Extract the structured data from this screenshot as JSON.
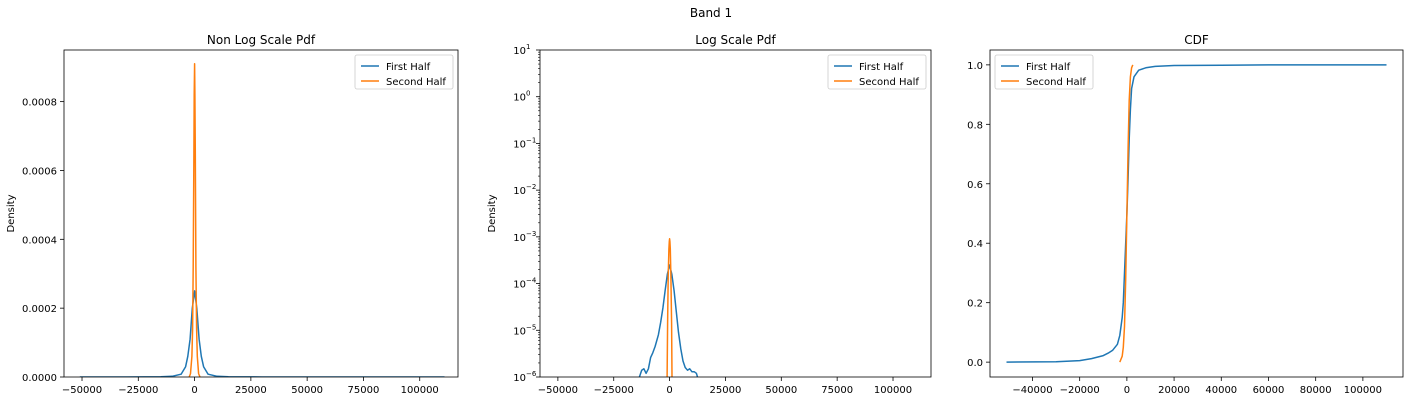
{
  "suptitle": "Band 1",
  "colors": {
    "first_half": "#1f77b4",
    "second_half": "#ff7f0e"
  },
  "chart_data": [
    {
      "type": "line",
      "title": "Non Log Scale Pdf",
      "xlabel": "",
      "ylabel": "Density",
      "xlim": [
        -58000,
        117000
      ],
      "ylim": [
        0,
        0.00095
      ],
      "yscale": "linear",
      "xticks": [
        -50000,
        -25000,
        0,
        25000,
        50000,
        75000,
        100000
      ],
      "xtick_labels": [
        "−50000",
        "−25000",
        "0",
        "25000",
        "50000",
        "75000",
        "100000"
      ],
      "yticks": [
        0,
        0.0002,
        0.0004,
        0.0006,
        0.0008
      ],
      "ytick_labels": [
        "0.0000",
        "0.0002",
        "0.0004",
        "0.0006",
        "0.0008"
      ],
      "legend": "top-right",
      "grid": false,
      "series": [
        {
          "name": "First Half",
          "x": [
            -51000,
            -30000,
            -15000,
            -10000,
            -6000,
            -4000,
            -3000,
            -2000,
            -1000,
            0,
            1000,
            2000,
            3000,
            4000,
            6000,
            10000,
            15000,
            30000,
            60000,
            111000
          ],
          "y": [
            0,
            0,
            1e-06,
            2e-06,
            8e-06,
            3e-05,
            6e-05,
            0.00011,
            0.0002,
            0.00025,
            0.0002,
            0.00011,
            6e-05,
            3e-05,
            8e-06,
            2e-06,
            1e-06,
            0,
            0,
            0
          ]
        },
        {
          "name": "Second Half",
          "x": [
            -2400,
            -1800,
            -1200,
            -900,
            -600,
            -300,
            -150,
            0,
            150,
            300,
            600,
            900,
            1200,
            1800,
            2400
          ],
          "y": [
            0,
            1e-05,
            6e-05,
            0.00014,
            0.00032,
            0.00065,
            0.00082,
            0.00091,
            0.00082,
            0.00065,
            0.00032,
            0.00014,
            6e-05,
            1e-05,
            0
          ]
        }
      ]
    },
    {
      "type": "line",
      "title": "Log Scale Pdf",
      "xlabel": "",
      "ylabel": "Density",
      "xlim": [
        -58000,
        117000
      ],
      "ylim": [
        1e-06,
        10
      ],
      "yscale": "log",
      "xticks": [
        -50000,
        -25000,
        0,
        25000,
        50000,
        75000,
        100000
      ],
      "xtick_labels": [
        "−50000",
        "−25000",
        "0",
        "25000",
        "50000",
        "75000",
        "100000"
      ],
      "yticks": [
        1e-06,
        1e-05,
        0.0001,
        0.001,
        0.01,
        0.1,
        1,
        10
      ],
      "ytick_exponents": [
        "−6",
        "−5",
        "−4",
        "−3",
        "−2",
        "−1",
        "0",
        "1"
      ],
      "legend": "top-right",
      "grid": false,
      "series": [
        {
          "name": "First Half",
          "x": [
            -13500,
            -12500,
            -11500,
            -10500,
            -9500,
            -8500,
            -7500,
            -6500,
            -5000,
            -4000,
            -3000,
            -2000,
            -1000,
            0,
            1000,
            2000,
            3000,
            4000,
            5000,
            6000,
            7000,
            8000,
            9000,
            10000,
            11000,
            12000,
            12500
          ],
          "y": [
            1e-06,
            1.4e-06,
            1.5e-06,
            1.2e-06,
            1.5e-06,
            2.6e-06,
            3.3e-06,
            4.5e-06,
            8e-06,
            1.5e-05,
            3e-05,
            7e-05,
            0.00016,
            0.00025,
            0.00016,
            7e-05,
            2.5e-05,
            9e-06,
            4e-06,
            2.2e-06,
            1.6e-06,
            1.4e-06,
            1.5e-06,
            1.3e-06,
            1.3e-06,
            1.2e-06,
            1e-06
          ]
        },
        {
          "name": "Second Half",
          "x": [
            -1100,
            -900,
            -600,
            -300,
            -150,
            0,
            150,
            300,
            600,
            900,
            1100
          ],
          "y": [
            1e-06,
            1.4e-05,
            0.00014,
            0.00055,
            0.0008,
            0.00091,
            0.0008,
            0.00055,
            0.00014,
            1.4e-05,
            1e-06
          ]
        }
      ]
    },
    {
      "type": "line",
      "title": "CDF",
      "xlabel": "",
      "ylabel": "",
      "xlim": [
        -58000,
        117000
      ],
      "ylim": [
        -0.05,
        1.05
      ],
      "yscale": "linear",
      "xticks": [
        -40000,
        -20000,
        0,
        20000,
        40000,
        60000,
        80000,
        100000
      ],
      "xtick_labels": [
        "−40000",
        "−20000",
        "0",
        "20000",
        "40000",
        "60000",
        "80000",
        "100000"
      ],
      "yticks": [
        0,
        0.2,
        0.4,
        0.6,
        0.8,
        1.0
      ],
      "ytick_labels": [
        "0.0",
        "0.2",
        "0.4",
        "0.6",
        "0.8",
        "1.0"
      ],
      "legend": "top-left",
      "grid": false,
      "series": [
        {
          "name": "First Half",
          "x": [
            -51000,
            -30000,
            -20000,
            -15000,
            -10000,
            -8000,
            -6000,
            -4000,
            -3000,
            -2000,
            -1500,
            -1000,
            -500,
            0,
            500,
            1000,
            1500,
            2000,
            3000,
            5000,
            8000,
            12000,
            20000,
            40000,
            60000,
            110000
          ],
          "y": [
            0,
            0.001,
            0.005,
            0.012,
            0.022,
            0.03,
            0.04,
            0.06,
            0.09,
            0.15,
            0.2,
            0.3,
            0.4,
            0.5,
            0.62,
            0.75,
            0.85,
            0.92,
            0.96,
            0.982,
            0.99,
            0.995,
            0.998,
            0.999,
            1.0,
            1.0
          ]
        },
        {
          "name": "Second Half",
          "x": [
            -3000,
            -2000,
            -1500,
            -1000,
            -500,
            0,
            500,
            1000,
            1500,
            2000,
            2500
          ],
          "y": [
            0,
            0.02,
            0.05,
            0.12,
            0.28,
            0.5,
            0.72,
            0.88,
            0.96,
            0.99,
            1.0
          ]
        }
      ]
    }
  ]
}
